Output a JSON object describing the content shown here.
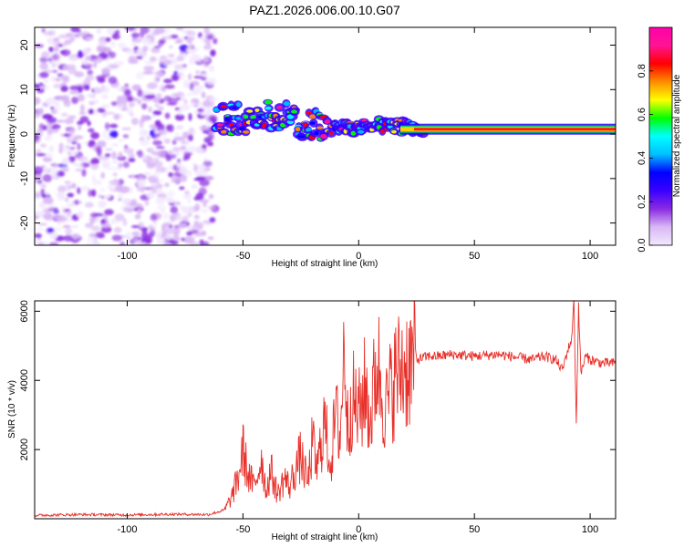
{
  "title": "PAZ1.2026.006.00.10.G07",
  "chart_data": [
    {
      "type": "heatmap",
      "xlabel": "Height of straight line (km)",
      "ylabel": "Frequency (Hz)",
      "xlim": [
        -140,
        111
      ],
      "ylim": [
        -25,
        24
      ],
      "xticks": [
        -100,
        -50,
        0,
        50,
        100
      ],
      "yticks": [
        -20,
        -10,
        0,
        10,
        20
      ],
      "xtick_labels": [
        "-100",
        "-50",
        "0",
        "50",
        "100"
      ],
      "ytick_labels": [
        "-20",
        "-10",
        "0",
        "10",
        "20"
      ],
      "colorbar": {
        "label": "Normalized spectral amplitude",
        "range": [
          0,
          1
        ],
        "ticks": [
          0.0,
          0.2,
          0.4,
          0.6,
          0.8
        ],
        "tick_labels": [
          "0.0",
          "0.2",
          "0.4",
          "0.6",
          "0.8"
        ],
        "colors": [
          "#f2e8ff",
          "#d9b8f5",
          "#8a2be2",
          "#3a00ff",
          "#0000ff",
          "#00bfff",
          "#00ffff",
          "#00ff00",
          "#ffff00",
          "#ff8c00",
          "#ff0000",
          "#ff1493",
          "#ff00aa"
        ]
      },
      "noise_region": {
        "x_from": -140,
        "x_to": -62,
        "description": "broadband low-amplitude noise"
      },
      "ridge": [
        {
          "x": -62,
          "y": 3.0
        },
        {
          "x": -50,
          "y": 3.5
        },
        {
          "x": -40,
          "y": 4.5
        },
        {
          "x": -33,
          "y": 4.0
        },
        {
          "x": -25,
          "y": 2.5
        },
        {
          "x": -18,
          "y": 2.0
        },
        {
          "x": -12,
          "y": 1.5
        },
        {
          "x": -5,
          "y": 2.0
        },
        {
          "x": 0,
          "y": 1.0
        },
        {
          "x": 5,
          "y": 2.5
        },
        {
          "x": 10,
          "y": 2.0
        },
        {
          "x": 20,
          "y": 1.5
        },
        {
          "x": 30,
          "y": 1.2
        },
        {
          "x": 60,
          "y": 1.2
        },
        {
          "x": 95,
          "y": 1.0
        },
        {
          "x": 111,
          "y": 1.0
        }
      ]
    },
    {
      "type": "line",
      "xlabel": "Height of straight line (km)",
      "ylabel": "SNR (10 * v/v)",
      "xlim": [
        -140,
        111
      ],
      "ylim": [
        0,
        6300
      ],
      "xticks": [
        -100,
        -50,
        0,
        50,
        100
      ],
      "yticks": [
        2000,
        4000,
        6000
      ],
      "xtick_labels": [
        "-100",
        "-50",
        "0",
        "50",
        "100"
      ],
      "ytick_labels": [
        "2000",
        "4000",
        "6000"
      ],
      "color": "#e8302a",
      "series": [
        {
          "name": "SNR",
          "x": [
            -140,
            -120,
            -100,
            -80,
            -65,
            -58,
            -55,
            -52,
            -50,
            -48,
            -45,
            -42,
            -40,
            -38,
            -35,
            -32,
            -30,
            -27,
            -25,
            -22,
            -20,
            -18,
            -15,
            -12,
            -10,
            -8,
            -6,
            -5,
            -3,
            0,
            3,
            5,
            8,
            10,
            12,
            15,
            18,
            20,
            25,
            30,
            35,
            40,
            50,
            60,
            70,
            75,
            80,
            85,
            88,
            90,
            92,
            93,
            94,
            95,
            96,
            98,
            100,
            105,
            111
          ],
          "y": [
            100,
            120,
            110,
            130,
            120,
            250,
            600,
            1200,
            2000,
            1300,
            900,
            1800,
            800,
            1400,
            700,
            1200,
            900,
            1500,
            1800,
            1000,
            2200,
            1400,
            2800,
            1600,
            3000,
            2400,
            5300,
            2600,
            3500,
            3000,
            3800,
            2800,
            4600,
            3700,
            3200,
            4000,
            4300,
            4400,
            4600,
            4700,
            4700,
            4750,
            4700,
            4750,
            4650,
            4600,
            4700,
            4600,
            4300,
            4800,
            5200,
            6300,
            2700,
            6200,
            4200,
            4700,
            4600,
            4500,
            4500
          ]
        }
      ]
    }
  ]
}
